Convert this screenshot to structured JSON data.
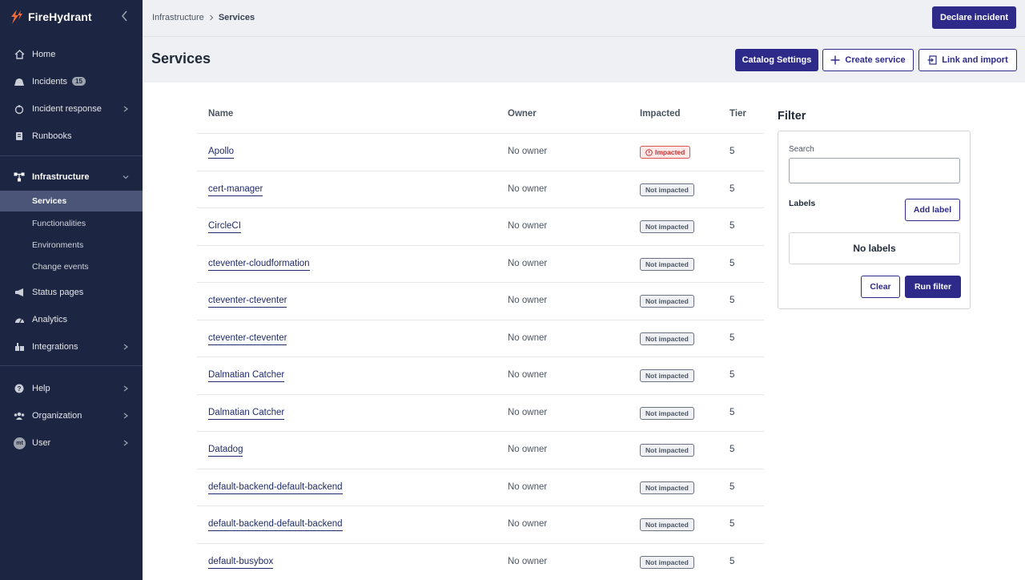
{
  "app": {
    "name": "FireHydrant"
  },
  "colors": {
    "sidebar": "#1c2541",
    "brand": "#2d2a8a",
    "logo": "#f26b3a",
    "impacted": "#c53030"
  },
  "sidebar": {
    "items": [
      {
        "label": "Home",
        "icon": "home-icon"
      },
      {
        "label": "Incidents",
        "icon": "incidents-icon",
        "badge": "15"
      },
      {
        "label": "Incident response",
        "icon": "incident-response-icon"
      },
      {
        "label": "Runbooks",
        "icon": "runbooks-icon"
      },
      {
        "label": "Infrastructure",
        "icon": "infrastructure-icon"
      },
      {
        "label": "Status pages",
        "icon": "megaphone-icon"
      },
      {
        "label": "Analytics",
        "icon": "analytics-icon"
      },
      {
        "label": "Integrations",
        "icon": "integrations-icon"
      },
      {
        "label": "Help",
        "icon": "help-icon"
      },
      {
        "label": "Organization",
        "icon": "organization-icon"
      },
      {
        "label": "User",
        "icon": "user-avatar",
        "avatar": "mt"
      }
    ],
    "subitems": [
      "Services",
      "Functionalities",
      "Environments",
      "Change events"
    ]
  },
  "breadcrumb": {
    "parent": "Infrastructure",
    "current": "Services"
  },
  "header": {
    "declare": "Declare incident",
    "title": "Services",
    "catalog": "Catalog Settings",
    "create": "Create service",
    "link": "Link and import"
  },
  "table": {
    "columns": [
      "Name",
      "Owner",
      "Impacted",
      "Tier"
    ],
    "rows": [
      {
        "name": "Apollo",
        "owner": "No owner",
        "impacted": "Impacted",
        "tier": "5"
      },
      {
        "name": "cert-manager",
        "owner": "No owner",
        "impacted": "Not impacted",
        "tier": "5"
      },
      {
        "name": "CircleCI",
        "owner": "No owner",
        "impacted": "Not impacted",
        "tier": "5"
      },
      {
        "name": "cteventer-cloudformation",
        "owner": "No owner",
        "impacted": "Not impacted",
        "tier": "5"
      },
      {
        "name": "cteventer-cteventer",
        "owner": "No owner",
        "impacted": "Not impacted",
        "tier": "5"
      },
      {
        "name": "cteventer-cteventer",
        "owner": "No owner",
        "impacted": "Not impacted",
        "tier": "5"
      },
      {
        "name": "Dalmatian Catcher",
        "owner": "No owner",
        "impacted": "Not impacted",
        "tier": "5"
      },
      {
        "name": "Dalmatian Catcher",
        "owner": "No owner",
        "impacted": "Not impacted",
        "tier": "5"
      },
      {
        "name": "Datadog",
        "owner": "No owner",
        "impacted": "Not impacted",
        "tier": "5"
      },
      {
        "name": "default-backend-default-backend",
        "owner": "No owner",
        "impacted": "Not impacted",
        "tier": "5"
      },
      {
        "name": "default-backend-default-backend",
        "owner": "No owner",
        "impacted": "Not impacted",
        "tier": "5"
      },
      {
        "name": "default-busybox",
        "owner": "No owner",
        "impacted": "Not impacted",
        "tier": "5"
      }
    ]
  },
  "filter": {
    "title": "Filter",
    "search_label": "Search",
    "search_value": "",
    "labels_title": "Labels",
    "add_label": "Add label",
    "no_labels": "No labels",
    "clear": "Clear",
    "run": "Run filter"
  }
}
